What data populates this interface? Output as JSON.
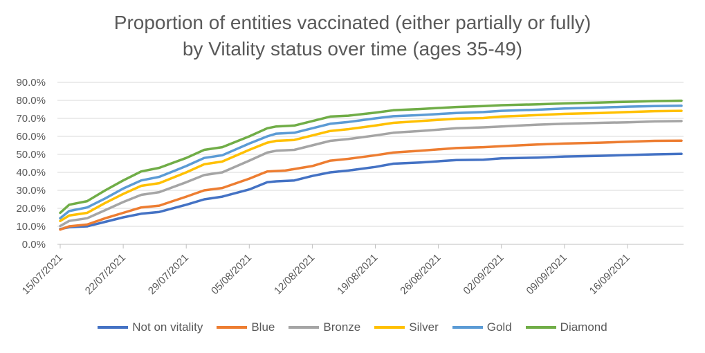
{
  "chart_data": {
    "type": "line",
    "title_lines": [
      "Proportion of entities vaccinated (either partially or fully)",
      "by Vitality status over time (ages 35-49)"
    ],
    "xlabel": "",
    "ylabel": "",
    "ylim": [
      0,
      90
    ],
    "yticks": [
      "0.0%",
      "10.0%",
      "20.0%",
      "30.0%",
      "40.0%",
      "50.0%",
      "60.0%",
      "70.0%",
      "80.0%",
      "90.0%"
    ],
    "grid": true,
    "legend_position": "bottom",
    "x_start": "15/07/2021",
    "x_end": "22/09/2021",
    "x_tick_labels": [
      {
        "date": "15/07/2021",
        "label": "15/07/2021"
      },
      {
        "date": "22/07/2021",
        "label": "22/07/2021"
      },
      {
        "date": "29/07/2021",
        "label": "29/07/2021"
      },
      {
        "date": "05/08/2021",
        "label": "05/08/2021"
      },
      {
        "date": "12/08/2021",
        "label": "12/08/2021"
      },
      {
        "date": "19/08/2021",
        "label": "19/08/2021"
      },
      {
        "date": "26/08/2021",
        "label": "26/08/2021"
      },
      {
        "date": "02/09/2021",
        "label": "02/09/2021"
      },
      {
        "date": "09/09/2021",
        "label": "09/09/2021"
      },
      {
        "date": "16/09/2021",
        "label": "16/09/2021"
      }
    ],
    "series": [
      {
        "name": "Not on vitality",
        "color": "#4472C4",
        "points": [
          [
            "15/07/2021",
            8.5
          ],
          [
            "16/07/2021",
            9.5
          ],
          [
            "18/07/2021",
            10
          ],
          [
            "20/07/2021",
            12.5
          ],
          [
            "22/07/2021",
            15
          ],
          [
            "24/07/2021",
            17
          ],
          [
            "26/07/2021",
            18
          ],
          [
            "29/07/2021",
            22
          ],
          [
            "31/07/2021",
            25
          ],
          [
            "02/08/2021",
            26.5
          ],
          [
            "05/08/2021",
            30.5
          ],
          [
            "07/08/2021",
            34.5
          ],
          [
            "08/08/2021",
            35
          ],
          [
            "10/08/2021",
            35.5
          ],
          [
            "12/08/2021",
            38
          ],
          [
            "14/08/2021",
            40
          ],
          [
            "16/08/2021",
            41
          ],
          [
            "19/08/2021",
            43
          ],
          [
            "21/08/2021",
            44.8
          ],
          [
            "24/08/2021",
            45.5
          ],
          [
            "28/08/2021",
            46.8
          ],
          [
            "31/08/2021",
            47
          ],
          [
            "02/09/2021",
            47.8
          ],
          [
            "06/09/2021",
            48.2
          ],
          [
            "09/09/2021",
            48.8
          ],
          [
            "13/09/2021",
            49.2
          ],
          [
            "16/09/2021",
            49.6
          ],
          [
            "19/09/2021",
            50
          ],
          [
            "22/09/2021",
            50.3
          ]
        ]
      },
      {
        "name": "Blue",
        "color": "#ED7D31",
        "points": [
          [
            "15/07/2021",
            8.2
          ],
          [
            "16/07/2021",
            10
          ],
          [
            "18/07/2021",
            11
          ],
          [
            "20/07/2021",
            14.5
          ],
          [
            "22/07/2021",
            17.5
          ],
          [
            "24/07/2021",
            20.5
          ],
          [
            "26/07/2021",
            21.5
          ],
          [
            "29/07/2021",
            26.5
          ],
          [
            "31/07/2021",
            30
          ],
          [
            "02/08/2021",
            31.3
          ],
          [
            "05/08/2021",
            36.5
          ],
          [
            "07/08/2021",
            40.5
          ],
          [
            "09/08/2021",
            41
          ],
          [
            "12/08/2021",
            43.5
          ],
          [
            "14/08/2021",
            46.5
          ],
          [
            "16/08/2021",
            47.5
          ],
          [
            "19/08/2021",
            49.5
          ],
          [
            "21/08/2021",
            51
          ],
          [
            "24/08/2021",
            52
          ],
          [
            "28/08/2021",
            53.5
          ],
          [
            "31/08/2021",
            54
          ],
          [
            "02/09/2021",
            54.5
          ],
          [
            "06/09/2021",
            55.5
          ],
          [
            "09/09/2021",
            56
          ],
          [
            "13/09/2021",
            56.5
          ],
          [
            "16/09/2021",
            57
          ],
          [
            "19/09/2021",
            57.5
          ],
          [
            "22/09/2021",
            57.6
          ]
        ]
      },
      {
        "name": "Bronze",
        "color": "#A5A5A5",
        "points": [
          [
            "15/07/2021",
            10.2
          ],
          [
            "16/07/2021",
            13
          ],
          [
            "18/07/2021",
            14.5
          ],
          [
            "20/07/2021",
            19
          ],
          [
            "22/07/2021",
            23.5
          ],
          [
            "24/07/2021",
            27.5
          ],
          [
            "26/07/2021",
            29
          ],
          [
            "29/07/2021",
            34.5
          ],
          [
            "31/07/2021",
            38.5
          ],
          [
            "02/08/2021",
            40
          ],
          [
            "05/08/2021",
            46.5
          ],
          [
            "07/08/2021",
            51
          ],
          [
            "08/08/2021",
            52
          ],
          [
            "10/08/2021",
            52.5
          ],
          [
            "12/08/2021",
            55
          ],
          [
            "14/08/2021",
            57.5
          ],
          [
            "16/08/2021",
            58.5
          ],
          [
            "19/08/2021",
            60.5
          ],
          [
            "21/08/2021",
            62
          ],
          [
            "24/08/2021",
            63
          ],
          [
            "28/08/2021",
            64.5
          ],
          [
            "31/08/2021",
            65
          ],
          [
            "02/09/2021",
            65.5
          ],
          [
            "06/09/2021",
            66.5
          ],
          [
            "09/09/2021",
            67
          ],
          [
            "13/09/2021",
            67.5
          ],
          [
            "16/09/2021",
            67.8
          ],
          [
            "19/09/2021",
            68.3
          ],
          [
            "22/09/2021",
            68.5
          ]
        ]
      },
      {
        "name": "Silver",
        "color": "#FFC000",
        "points": [
          [
            "15/07/2021",
            13
          ],
          [
            "16/07/2021",
            16
          ],
          [
            "18/07/2021",
            17.5
          ],
          [
            "20/07/2021",
            23
          ],
          [
            "22/07/2021",
            28
          ],
          [
            "24/07/2021",
            32.5
          ],
          [
            "26/07/2021",
            34
          ],
          [
            "29/07/2021",
            40
          ],
          [
            "31/07/2021",
            44.5
          ],
          [
            "02/08/2021",
            46
          ],
          [
            "05/08/2021",
            52.5
          ],
          [
            "07/08/2021",
            56.5
          ],
          [
            "08/08/2021",
            57.5
          ],
          [
            "10/08/2021",
            58
          ],
          [
            "12/08/2021",
            60.5
          ],
          [
            "14/08/2021",
            63
          ],
          [
            "16/08/2021",
            64
          ],
          [
            "19/08/2021",
            66
          ],
          [
            "21/08/2021",
            67.5
          ],
          [
            "24/08/2021",
            68.5
          ],
          [
            "28/08/2021",
            69.8
          ],
          [
            "31/08/2021",
            70.2
          ],
          [
            "02/09/2021",
            71
          ],
          [
            "06/09/2021",
            71.8
          ],
          [
            "09/09/2021",
            72.5
          ],
          [
            "13/09/2021",
            73
          ],
          [
            "16/09/2021",
            73.5
          ],
          [
            "19/09/2021",
            74
          ],
          [
            "22/09/2021",
            74.2
          ]
        ]
      },
      {
        "name": "Gold",
        "color": "#5B9BD5",
        "points": [
          [
            "15/07/2021",
            14.5
          ],
          [
            "16/07/2021",
            18.5
          ],
          [
            "18/07/2021",
            20.5
          ],
          [
            "20/07/2021",
            25.5
          ],
          [
            "22/07/2021",
            31
          ],
          [
            "24/07/2021",
            35.5
          ],
          [
            "26/07/2021",
            37.5
          ],
          [
            "29/07/2021",
            43.5
          ],
          [
            "31/07/2021",
            48
          ],
          [
            "02/08/2021",
            49.5
          ],
          [
            "05/08/2021",
            56
          ],
          [
            "07/08/2021",
            60
          ],
          [
            "08/08/2021",
            61.5
          ],
          [
            "10/08/2021",
            62
          ],
          [
            "12/08/2021",
            64.5
          ],
          [
            "14/08/2021",
            67
          ],
          [
            "16/08/2021",
            68
          ],
          [
            "19/08/2021",
            70
          ],
          [
            "21/08/2021",
            71.2
          ],
          [
            "24/08/2021",
            71.8
          ],
          [
            "28/08/2021",
            73
          ],
          [
            "31/08/2021",
            73.5
          ],
          [
            "02/09/2021",
            74.2
          ],
          [
            "06/09/2021",
            74.8
          ],
          [
            "09/09/2021",
            75.5
          ],
          [
            "13/09/2021",
            76
          ],
          [
            "16/09/2021",
            76.5
          ],
          [
            "19/09/2021",
            76.8
          ],
          [
            "22/09/2021",
            77
          ]
        ]
      },
      {
        "name": "Diamond",
        "color": "#70AD47",
        "points": [
          [
            "15/07/2021",
            17.5
          ],
          [
            "16/07/2021",
            22
          ],
          [
            "18/07/2021",
            24
          ],
          [
            "20/07/2021",
            30
          ],
          [
            "22/07/2021",
            35.5
          ],
          [
            "24/07/2021",
            40.5
          ],
          [
            "26/07/2021",
            42.5
          ],
          [
            "29/07/2021",
            48
          ],
          [
            "31/07/2021",
            52.5
          ],
          [
            "02/08/2021",
            54
          ],
          [
            "05/08/2021",
            60
          ],
          [
            "07/08/2021",
            64.5
          ],
          [
            "08/08/2021",
            65.5
          ],
          [
            "10/08/2021",
            66
          ],
          [
            "12/08/2021",
            68.5
          ],
          [
            "14/08/2021",
            71
          ],
          [
            "16/08/2021",
            71.5
          ],
          [
            "19/08/2021",
            73.2
          ],
          [
            "21/08/2021",
            74.5
          ],
          [
            "24/08/2021",
            75.2
          ],
          [
            "28/08/2021",
            76.3
          ],
          [
            "31/08/2021",
            76.8
          ],
          [
            "02/09/2021",
            77.3
          ],
          [
            "06/09/2021",
            77.8
          ],
          [
            "09/09/2021",
            78.3
          ],
          [
            "13/09/2021",
            78.8
          ],
          [
            "16/09/2021",
            79.2
          ],
          [
            "19/09/2021",
            79.6
          ],
          [
            "22/09/2021",
            79.8
          ]
        ]
      }
    ]
  }
}
